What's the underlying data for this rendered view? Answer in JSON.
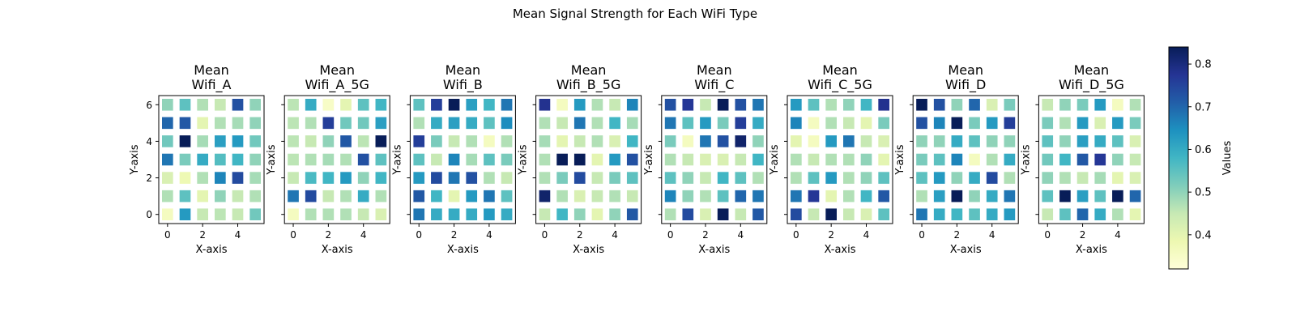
{
  "figure": {
    "title": "Mean Signal Strength for Each WiFi Type"
  },
  "colorbar": {
    "label": "Values",
    "min": 0.32,
    "max": 0.84,
    "ticks": [
      "0.4",
      "0.5",
      "0.6",
      "0.7",
      "0.8"
    ],
    "colormap": [
      "#ffffd9",
      "#edf8b1",
      "#c7e9b4",
      "#7fcdbb",
      "#41b6c4",
      "#1d91c0",
      "#225ea8",
      "#253494",
      "#081d58"
    ]
  },
  "chart_data": [
    {
      "type": "heatmap",
      "title": "Mean\nWifi_A",
      "xlabel": "X-axis",
      "ylabel": "Y-axis",
      "x_ticks": [
        "0",
        "2",
        "4"
      ],
      "y_ticks": [
        "0",
        "2",
        "4",
        "6"
      ],
      "rows": [
        [
          0.5,
          0.55,
          0.47,
          0.45,
          0.73,
          0.5
        ],
        [
          0.7,
          0.72,
          0.4,
          0.47,
          0.48,
          0.5
        ],
        [
          0.53,
          0.84,
          0.48,
          0.62,
          0.63,
          0.53
        ],
        [
          0.68,
          0.52,
          0.6,
          0.56,
          0.58,
          0.5
        ],
        [
          0.42,
          0.38,
          0.47,
          0.66,
          0.74,
          0.48
        ],
        [
          0.47,
          0.55,
          0.4,
          0.5,
          0.45,
          0.47
        ],
        [
          0.36,
          0.63,
          0.45,
          0.46,
          0.45,
          0.53
        ]
      ]
    },
    {
      "type": "heatmap",
      "title": "Mean\nWifi_A_5G",
      "xlabel": "X-axis",
      "ylabel": "Y-axis",
      "x_ticks": [
        "0",
        "2",
        "4"
      ],
      "y_ticks": [
        "0",
        "2",
        "4",
        "6"
      ],
      "rows": [
        [
          0.46,
          0.6,
          0.35,
          0.4,
          0.55,
          0.58
        ],
        [
          0.46,
          0.47,
          0.76,
          0.53,
          0.53,
          0.62
        ],
        [
          0.46,
          0.45,
          0.5,
          0.72,
          0.46,
          0.84
        ],
        [
          0.46,
          0.47,
          0.48,
          0.47,
          0.73,
          0.55
        ],
        [
          0.45,
          0.57,
          0.58,
          0.63,
          0.5,
          0.58
        ],
        [
          0.68,
          0.74,
          0.45,
          0.47,
          0.6,
          0.47
        ],
        [
          0.36,
          0.47,
          0.47,
          0.47,
          0.45,
          0.42
        ]
      ]
    },
    {
      "type": "heatmap",
      "title": "Mean\nWifi_B",
      "xlabel": "X-axis",
      "ylabel": "Y-axis",
      "x_ticks": [
        "0",
        "2",
        "4"
      ],
      "y_ticks": [
        "0",
        "2",
        "4",
        "6"
      ],
      "rows": [
        [
          0.55,
          0.76,
          0.84,
          0.62,
          0.58,
          0.68
        ],
        [
          0.47,
          0.6,
          0.62,
          0.6,
          0.55,
          0.65
        ],
        [
          0.76,
          0.52,
          0.45,
          0.47,
          0.36,
          0.47
        ],
        [
          0.55,
          0.45,
          0.66,
          0.48,
          0.55,
          0.52
        ],
        [
          0.63,
          0.74,
          0.68,
          0.73,
          0.47,
          0.45
        ],
        [
          0.72,
          0.58,
          0.4,
          0.63,
          0.68,
          0.55
        ],
        [
          0.68,
          0.6,
          0.6,
          0.6,
          0.63,
          0.6
        ]
      ]
    },
    {
      "type": "heatmap",
      "title": "Mean\nWifi_B_5G",
      "xlabel": "X-axis",
      "ylabel": "Y-axis",
      "x_ticks": [
        "0",
        "2",
        "4"
      ],
      "y_ticks": [
        "0",
        "2",
        "4",
        "6"
      ],
      "rows": [
        [
          0.78,
          0.36,
          0.63,
          0.47,
          0.45,
          0.66
        ],
        [
          0.47,
          0.45,
          0.68,
          0.47,
          0.58,
          0.48
        ],
        [
          0.48,
          0.4,
          0.45,
          0.47,
          0.42,
          0.58
        ],
        [
          0.47,
          0.84,
          0.84,
          0.4,
          0.63,
          0.73
        ],
        [
          0.47,
          0.52,
          0.74,
          0.45,
          0.52,
          0.55
        ],
        [
          0.82,
          0.47,
          0.42,
          0.45,
          0.47,
          0.45
        ],
        [
          0.45,
          0.58,
          0.5,
          0.4,
          0.5,
          0.72
        ]
      ]
    },
    {
      "type": "heatmap",
      "title": "Mean\nWifi_C",
      "xlabel": "X-axis",
      "ylabel": "Y-axis",
      "x_ticks": [
        "0",
        "2",
        "4"
      ],
      "y_ticks": [
        "0",
        "2",
        "4",
        "6"
      ],
      "rows": [
        [
          0.73,
          0.77,
          0.45,
          0.84,
          0.73,
          0.68
        ],
        [
          0.68,
          0.55,
          0.63,
          0.52,
          0.76,
          0.6
        ],
        [
          0.52,
          0.36,
          0.68,
          0.73,
          0.82,
          0.5
        ],
        [
          0.47,
          0.45,
          0.42,
          0.42,
          0.45,
          0.58
        ],
        [
          0.55,
          0.5,
          0.45,
          0.58,
          0.55,
          0.47
        ],
        [
          0.66,
          0.5,
          0.47,
          0.55,
          0.7,
          0.68
        ],
        [
          0.47,
          0.74,
          0.42,
          0.84,
          0.45,
          0.72
        ]
      ]
    },
    {
      "type": "heatmap",
      "title": "Mean\nWifi_C_5G",
      "xlabel": "X-axis",
      "ylabel": "Y-axis",
      "x_ticks": [
        "0",
        "2",
        "4"
      ],
      "y_ticks": [
        "0",
        "2",
        "4",
        "6"
      ],
      "rows": [
        [
          0.63,
          0.55,
          0.47,
          0.5,
          0.58,
          0.78
        ],
        [
          0.66,
          0.36,
          0.47,
          0.45,
          0.4,
          0.52
        ],
        [
          0.4,
          0.36,
          0.63,
          0.68,
          0.45,
          0.42
        ],
        [
          0.47,
          0.45,
          0.47,
          0.47,
          0.5,
          0.4
        ],
        [
          0.47,
          0.55,
          0.63,
          0.47,
          0.5,
          0.55
        ],
        [
          0.68,
          0.77,
          0.4,
          0.47,
          0.58,
          0.72
        ],
        [
          0.74,
          0.45,
          0.84,
          0.45,
          0.42,
          0.55
        ]
      ]
    },
    {
      "type": "heatmap",
      "title": "Mean\nWifi_D",
      "xlabel": "X-axis",
      "ylabel": "Y-axis",
      "x_ticks": [
        "0",
        "2",
        "4"
      ],
      "y_ticks": [
        "0",
        "2",
        "4",
        "6"
      ],
      "rows": [
        [
          0.84,
          0.73,
          0.5,
          0.7,
          0.42,
          0.52
        ],
        [
          0.73,
          0.66,
          0.84,
          0.52,
          0.63,
          0.76
        ],
        [
          0.5,
          0.5,
          0.6,
          0.55,
          0.5,
          0.5
        ],
        [
          0.52,
          0.55,
          0.66,
          0.36,
          0.47,
          0.6
        ],
        [
          0.55,
          0.63,
          0.5,
          0.6,
          0.74,
          0.47
        ],
        [
          0.47,
          0.62,
          0.84,
          0.5,
          0.6,
          0.68
        ],
        [
          0.68,
          0.6,
          0.58,
          0.55,
          0.6,
          0.63
        ]
      ]
    },
    {
      "type": "heatmap",
      "title": "Mean\nWifi_D_5G",
      "xlabel": "X-axis",
      "ylabel": "Y-axis",
      "x_ticks": [
        "0",
        "2",
        "4"
      ],
      "y_ticks": [
        "0",
        "2",
        "4",
        "6"
      ],
      "rows": [
        [
          0.45,
          0.5,
          0.52,
          0.63,
          0.36,
          0.47
        ],
        [
          0.52,
          0.47,
          0.63,
          0.42,
          0.63,
          0.52
        ],
        [
          0.55,
          0.5,
          0.62,
          0.6,
          0.55,
          0.42
        ],
        [
          0.53,
          0.58,
          0.72,
          0.77,
          0.5,
          0.45
        ],
        [
          0.5,
          0.47,
          0.45,
          0.48,
          0.4,
          0.42
        ],
        [
          0.55,
          0.84,
          0.62,
          0.55,
          0.84,
          0.7
        ],
        [
          0.45,
          0.55,
          0.7,
          0.6,
          0.47,
          0.4
        ]
      ]
    }
  ]
}
